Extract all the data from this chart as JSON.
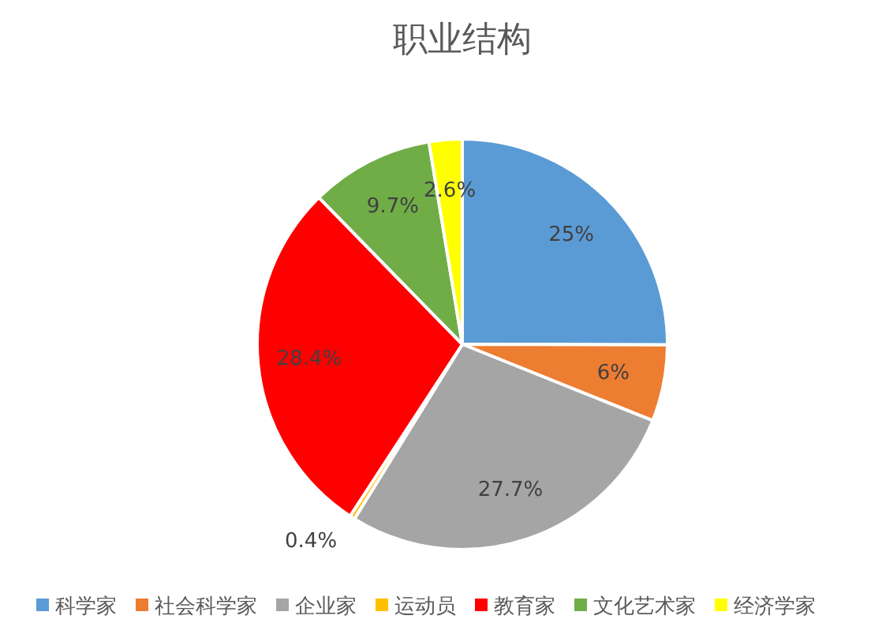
{
  "chart_data": {
    "type": "pie",
    "title": "职业结构",
    "categories": [
      "科学家",
      "社会科学家",
      "企业家",
      "运动员",
      "教育家",
      "文化艺术家",
      "经济学家"
    ],
    "values": [
      25,
      6,
      27.7,
      0.4,
      28.4,
      9.7,
      2.6
    ],
    "value_labels": [
      "25%",
      "6%",
      "27.7%",
      "0.4%",
      "28.4%",
      "9.7%",
      "2.6%"
    ],
    "colors": [
      "#5b9bd5",
      "#ed7d31",
      "#a5a5a5",
      "#ffc000",
      "#ff0000",
      "#70ad47",
      "#ffff00"
    ],
    "legend": "bottom"
  }
}
